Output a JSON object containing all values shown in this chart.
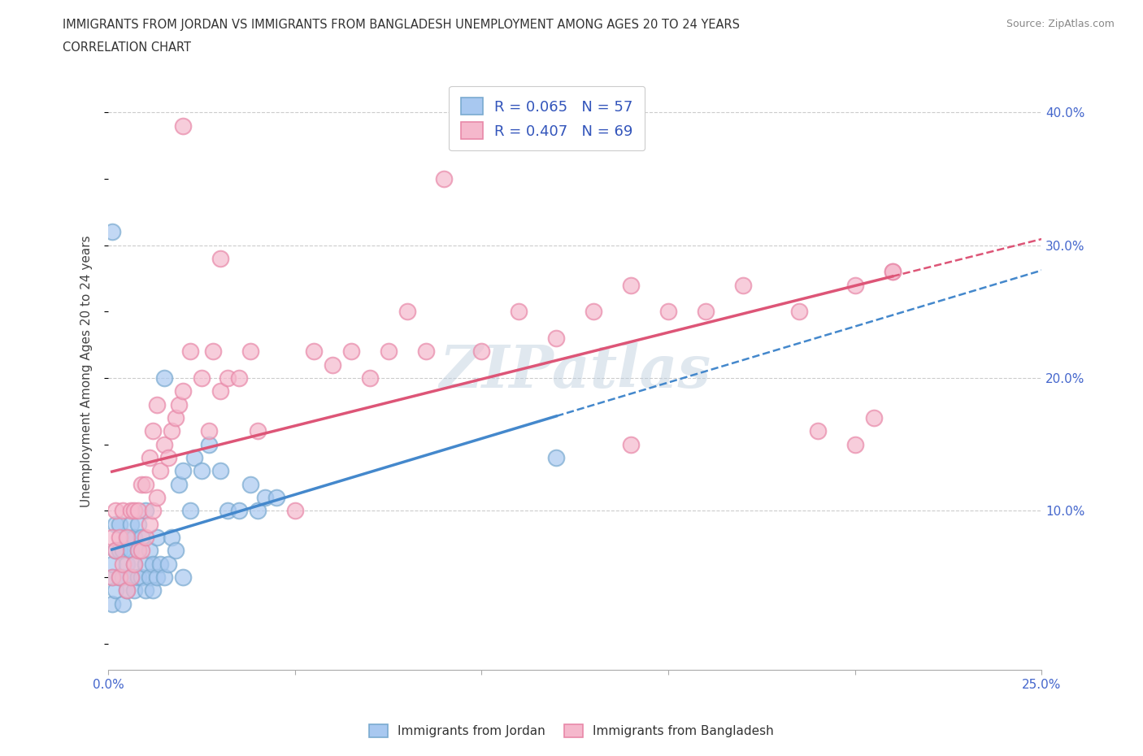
{
  "title_line1": "IMMIGRANTS FROM JORDAN VS IMMIGRANTS FROM BANGLADESH UNEMPLOYMENT AMONG AGES 20 TO 24 YEARS",
  "title_line2": "CORRELATION CHART",
  "source": "Source: ZipAtlas.com",
  "ylabel": "Unemployment Among Ages 20 to 24 years",
  "xlim": [
    0.0,
    0.25
  ],
  "ylim": [
    -0.02,
    0.43
  ],
  "yticks": [
    0.0,
    0.1,
    0.2,
    0.3,
    0.4
  ],
  "ytick_labels_right": [
    "",
    "10.0%",
    "20.0%",
    "30.0%",
    "40.0%"
  ],
  "xticks": [
    0.0,
    0.05,
    0.1,
    0.15,
    0.2,
    0.25
  ],
  "xtick_labels": [
    "0.0%",
    "",
    "",
    "",
    "",
    "25.0%"
  ],
  "jordan_color": "#a8c8f0",
  "jordan_edge_color": "#7aaad0",
  "bangladesh_color": "#f5b8cc",
  "bangladesh_edge_color": "#e888a8",
  "jordan_trend_color": "#4488cc",
  "bangladesh_trend_color": "#dd5577",
  "jordan_R": 0.065,
  "jordan_N": 57,
  "bangladesh_R": 0.407,
  "bangladesh_N": 69,
  "legend_label_jordan": "Immigrants from Jordan",
  "legend_label_bangladesh": "Immigrants from Bangladesh",
  "watermark": "ZIPatlas",
  "grid_color": "#cccccc",
  "jordan_x": [
    0.001,
    0.001,
    0.001,
    0.002,
    0.002,
    0.002,
    0.003,
    0.003,
    0.003,
    0.004,
    0.004,
    0.004,
    0.005,
    0.005,
    0.005,
    0.006,
    0.006,
    0.006,
    0.007,
    0.007,
    0.007,
    0.008,
    0.008,
    0.008,
    0.009,
    0.009,
    0.01,
    0.01,
    0.01,
    0.011,
    0.011,
    0.012,
    0.012,
    0.013,
    0.013,
    0.014,
    0.015,
    0.015,
    0.016,
    0.017,
    0.018,
    0.019,
    0.02,
    0.02,
    0.022,
    0.023,
    0.025,
    0.027,
    0.03,
    0.032,
    0.035,
    0.038,
    0.04,
    0.042,
    0.045,
    0.001,
    0.12
  ],
  "jordan_y": [
    0.03,
    0.05,
    0.06,
    0.04,
    0.07,
    0.09,
    0.05,
    0.07,
    0.09,
    0.03,
    0.05,
    0.07,
    0.04,
    0.06,
    0.08,
    0.05,
    0.07,
    0.09,
    0.04,
    0.06,
    0.08,
    0.05,
    0.07,
    0.09,
    0.05,
    0.08,
    0.04,
    0.06,
    0.1,
    0.05,
    0.07,
    0.04,
    0.06,
    0.05,
    0.08,
    0.06,
    0.05,
    0.2,
    0.06,
    0.08,
    0.07,
    0.12,
    0.05,
    0.13,
    0.1,
    0.14,
    0.13,
    0.15,
    0.13,
    0.1,
    0.1,
    0.12,
    0.1,
    0.11,
    0.11,
    0.31,
    0.14
  ],
  "bangladesh_x": [
    0.001,
    0.001,
    0.002,
    0.002,
    0.003,
    0.003,
    0.004,
    0.004,
    0.005,
    0.005,
    0.006,
    0.006,
    0.007,
    0.007,
    0.008,
    0.008,
    0.009,
    0.009,
    0.01,
    0.01,
    0.011,
    0.011,
    0.012,
    0.012,
    0.013,
    0.013,
    0.014,
    0.015,
    0.016,
    0.017,
    0.018,
    0.019,
    0.02,
    0.022,
    0.025,
    0.027,
    0.028,
    0.03,
    0.032,
    0.035,
    0.038,
    0.04,
    0.05,
    0.055,
    0.06,
    0.065,
    0.07,
    0.075,
    0.08,
    0.085,
    0.09,
    0.1,
    0.11,
    0.12,
    0.13,
    0.14,
    0.15,
    0.16,
    0.17,
    0.185,
    0.19,
    0.2,
    0.205,
    0.21,
    0.02,
    0.03,
    0.14,
    0.2,
    0.21
  ],
  "bangladesh_y": [
    0.05,
    0.08,
    0.07,
    0.1,
    0.05,
    0.08,
    0.06,
    0.1,
    0.04,
    0.08,
    0.05,
    0.1,
    0.06,
    0.1,
    0.07,
    0.1,
    0.07,
    0.12,
    0.08,
    0.12,
    0.09,
    0.14,
    0.1,
    0.16,
    0.11,
    0.18,
    0.13,
    0.15,
    0.14,
    0.16,
    0.17,
    0.18,
    0.19,
    0.22,
    0.2,
    0.16,
    0.22,
    0.19,
    0.2,
    0.2,
    0.22,
    0.16,
    0.1,
    0.22,
    0.21,
    0.22,
    0.2,
    0.22,
    0.25,
    0.22,
    0.35,
    0.22,
    0.25,
    0.23,
    0.25,
    0.27,
    0.25,
    0.25,
    0.27,
    0.25,
    0.16,
    0.27,
    0.17,
    0.28,
    0.39,
    0.29,
    0.15,
    0.15,
    0.28
  ]
}
